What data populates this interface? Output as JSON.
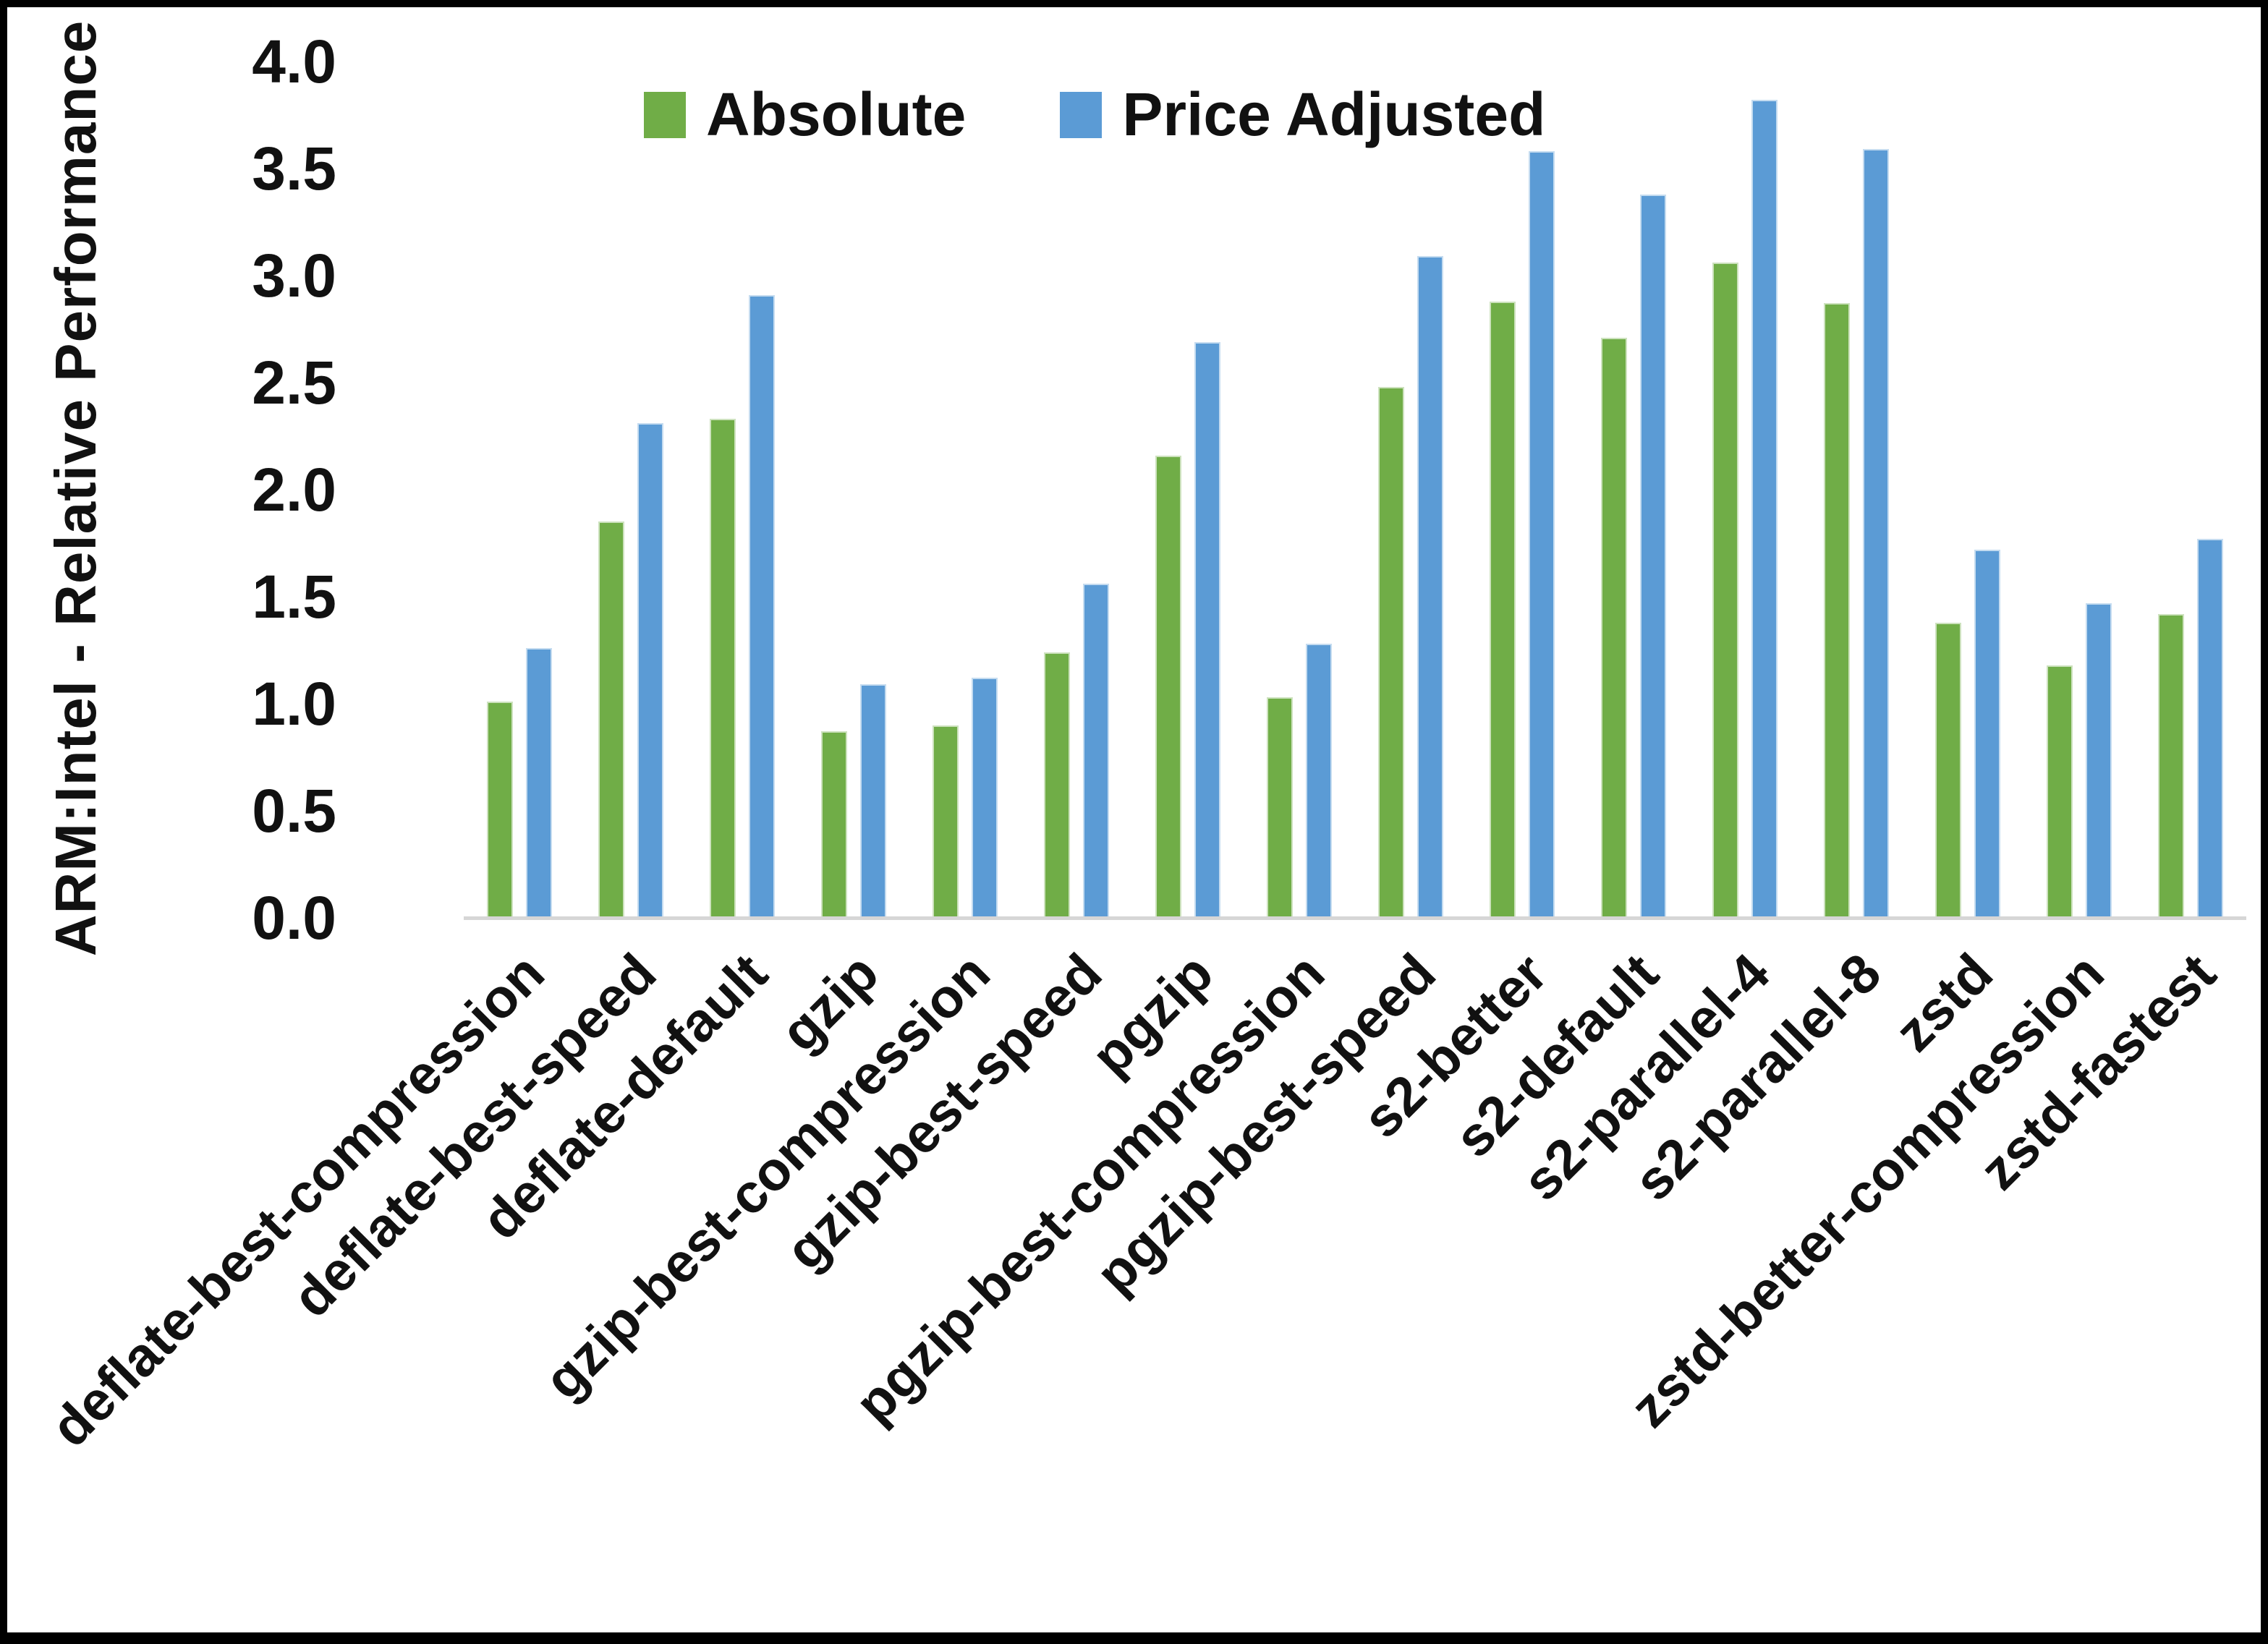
{
  "chart_data": {
    "type": "bar",
    "title": "",
    "ylabel": "ARM:Intel - Relative Performance",
    "xlabel": "",
    "ylim": [
      0.0,
      4.0
    ],
    "ytick_step": 0.5,
    "ytick_labels": [
      "0.0",
      "0.5",
      "1.0",
      "1.5",
      "2.0",
      "2.5",
      "3.0",
      "3.5",
      "4.0"
    ],
    "grid": false,
    "legend_position": "top-center",
    "axis_line_color": "#d6d6d6",
    "categories": [
      "deflate-best-compression",
      "deflate-best-speed",
      "deflate-default",
      "gzip",
      "gzip-best-compression",
      "gzip-best-speed",
      "pgzip",
      "pgzip-best-compression",
      "pgzip-best-speed",
      "s2-better",
      "s2-default",
      "s2-parallel-4",
      "s2-parallel-8",
      "zstd",
      "zstd-better-compression",
      "zstd-fastest"
    ],
    "series": [
      {
        "name": "Absolute",
        "color": "#70AD47",
        "values": [
          1.01,
          1.85,
          2.33,
          0.87,
          0.9,
          1.24,
          2.16,
          1.03,
          2.48,
          2.88,
          2.71,
          3.06,
          2.87,
          1.38,
          1.18,
          1.42
        ]
      },
      {
        "name": "Price Adjusted",
        "color": "#5B9BD5",
        "values": [
          1.26,
          2.31,
          2.91,
          1.09,
          1.12,
          1.56,
          2.69,
          1.28,
          3.09,
          3.58,
          3.38,
          3.82,
          3.59,
          1.72,
          1.47,
          1.77
        ]
      }
    ]
  }
}
